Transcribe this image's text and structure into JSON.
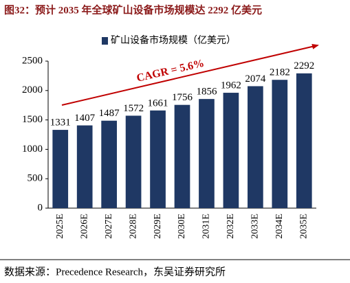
{
  "chart_data": {
    "type": "bar",
    "title": "图32：预计 2035 年全球矿山设备市场规模达 2292 亿美元",
    "source": "数据来源：Precedence Research，东吴证券研究所",
    "categories": [
      "2025E",
      "2026E",
      "2027E",
      "2028E",
      "2029E",
      "2030E",
      "2031E",
      "2032E",
      "2033E",
      "2034E",
      "2035E"
    ],
    "series": [
      {
        "name": "矿山设备市场规模（亿美元）",
        "color": "#1f3864",
        "values": [
          1331,
          1407,
          1487,
          1572,
          1661,
          1756,
          1856,
          1962,
          2074,
          2182,
          2292
        ]
      }
    ],
    "annotation": "CAGR = 5.6%",
    "ylim": [
      0,
      2500
    ],
    "yticks": [
      0,
      500,
      1000,
      1500,
      2000,
      2500
    ],
    "grid": false
  }
}
